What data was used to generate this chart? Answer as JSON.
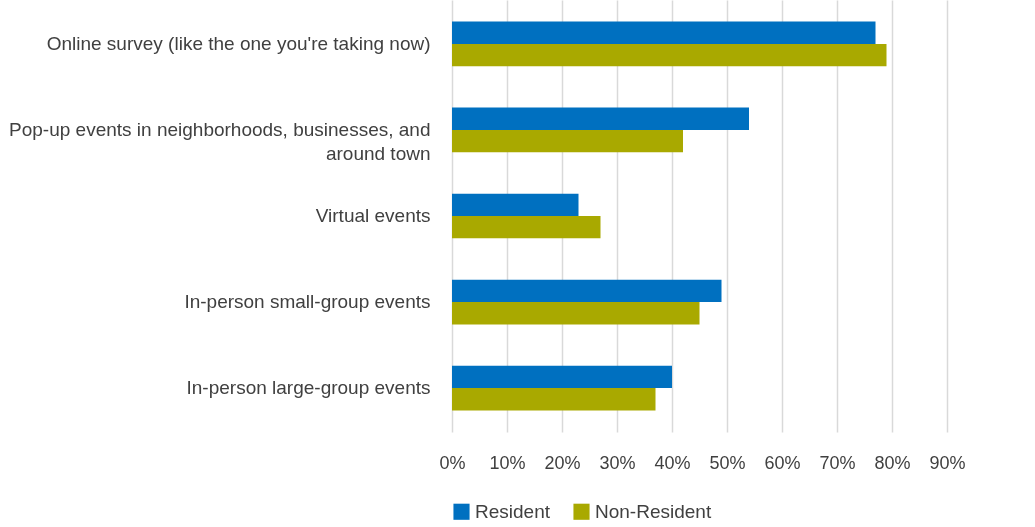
{
  "chart_data": {
    "type": "bar",
    "orientation": "horizontal",
    "categories": [
      "Online survey (like the one you're taking now)",
      "Pop-up events in neighborhoods, businesses, and around town",
      "Virtual events",
      "In-person small-group events",
      "In-person large-group events"
    ],
    "series": [
      {
        "name": "Resident",
        "color": "#0070c0",
        "values": [
          77,
          54,
          23,
          49,
          40
        ]
      },
      {
        "name": "Non-Resident",
        "color": "#a9a900",
        "values": [
          79,
          42,
          27,
          45,
          37
        ]
      }
    ],
    "xlim": [
      0,
      90
    ],
    "xticks": [
      {
        "value": 0,
        "label": "0%"
      },
      {
        "value": 10,
        "label": "10%"
      },
      {
        "value": 20,
        "label": "20%"
      },
      {
        "value": 30,
        "label": "30%"
      },
      {
        "value": 40,
        "label": "40%"
      },
      {
        "value": 50,
        "label": "50%"
      },
      {
        "value": 60,
        "label": "60%"
      },
      {
        "value": 70,
        "label": "70%"
      },
      {
        "value": 80,
        "label": "80%"
      },
      {
        "value": 90,
        "label": "90%"
      }
    ],
    "grid": "x",
    "legend": "bottom"
  }
}
